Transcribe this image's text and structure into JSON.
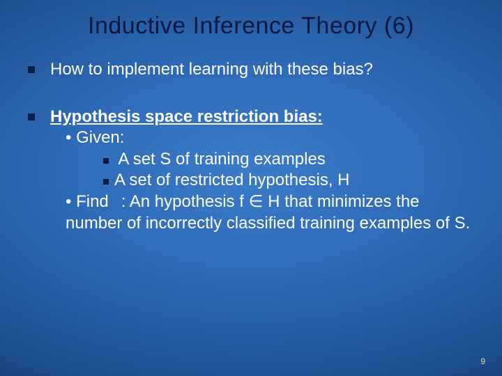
{
  "colors": {
    "background_center": "#3a7bc8",
    "background_edge": "#0d2d5a",
    "title_color": "#081840",
    "text_color": "#ffffff",
    "bullet_color": "#0a1f45",
    "pagenum_color": "#e8d890"
  },
  "typography": {
    "title_fontsize": 34,
    "body_fontsize": 24,
    "pagenum_fontsize": 12,
    "font_family": "Verdana"
  },
  "title": "Inductive Inference Theory (6)",
  "bullets": {
    "b1": "How to implement learning with these bias?",
    "b2_heading": "Hypothesis space restriction bias:",
    "b2_given": "• Given:",
    "b2_given_item1": " A set S of training examples",
    "b2_given_item2": "A set of restricted hypothesis, H",
    "b2_find_label": "• Find",
    "b2_find_colon": ":",
    "b2_find_text": " An hypothesis f ∈ H that minimizes the number of incorrectly classified training  examples of S."
  },
  "page_number": "9"
}
